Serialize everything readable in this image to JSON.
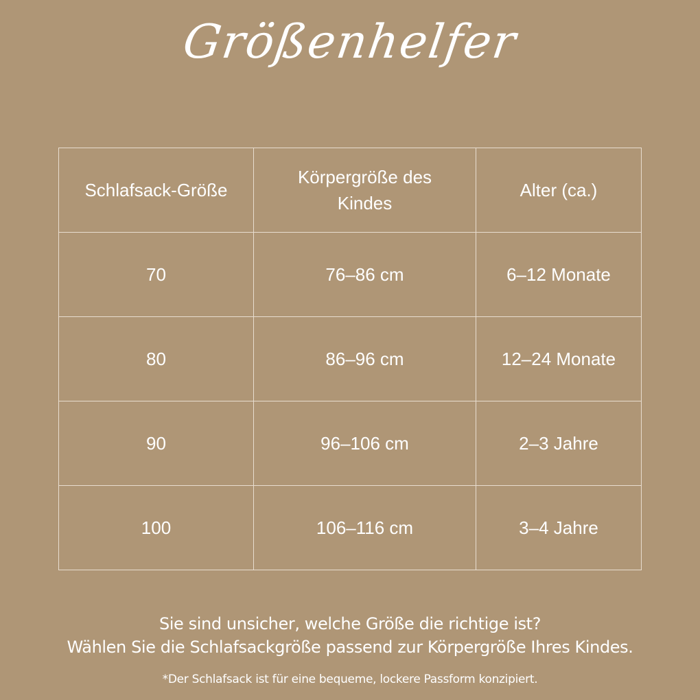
{
  "title": "Größenhelfer",
  "table": {
    "headers": [
      "Schlafsack-Größe",
      "Körpergröße des Kindes",
      "Alter (ca.)"
    ],
    "rows": [
      [
        "70",
        "76–86 cm",
        "6–12 Monate"
      ],
      [
        "80",
        "86–96 cm",
        "12–24 Monate"
      ],
      [
        "90",
        "96–106 cm",
        "2–3 Jahre"
      ],
      [
        "100",
        "106–116 cm",
        "3–4 Jahre"
      ]
    ]
  },
  "note": {
    "line1": "Sie sind unsicher, welche Größe die richtige ist?",
    "line2": "Wählen Sie die Schlafsackgröße passend zur Körpergröße Ihres Kindes.",
    "footnote": "*Der Schlafsack ist für eine bequeme, lockere Passform konzipiert."
  },
  "colors": {
    "background": "#af9676",
    "text": "#ffffff"
  }
}
